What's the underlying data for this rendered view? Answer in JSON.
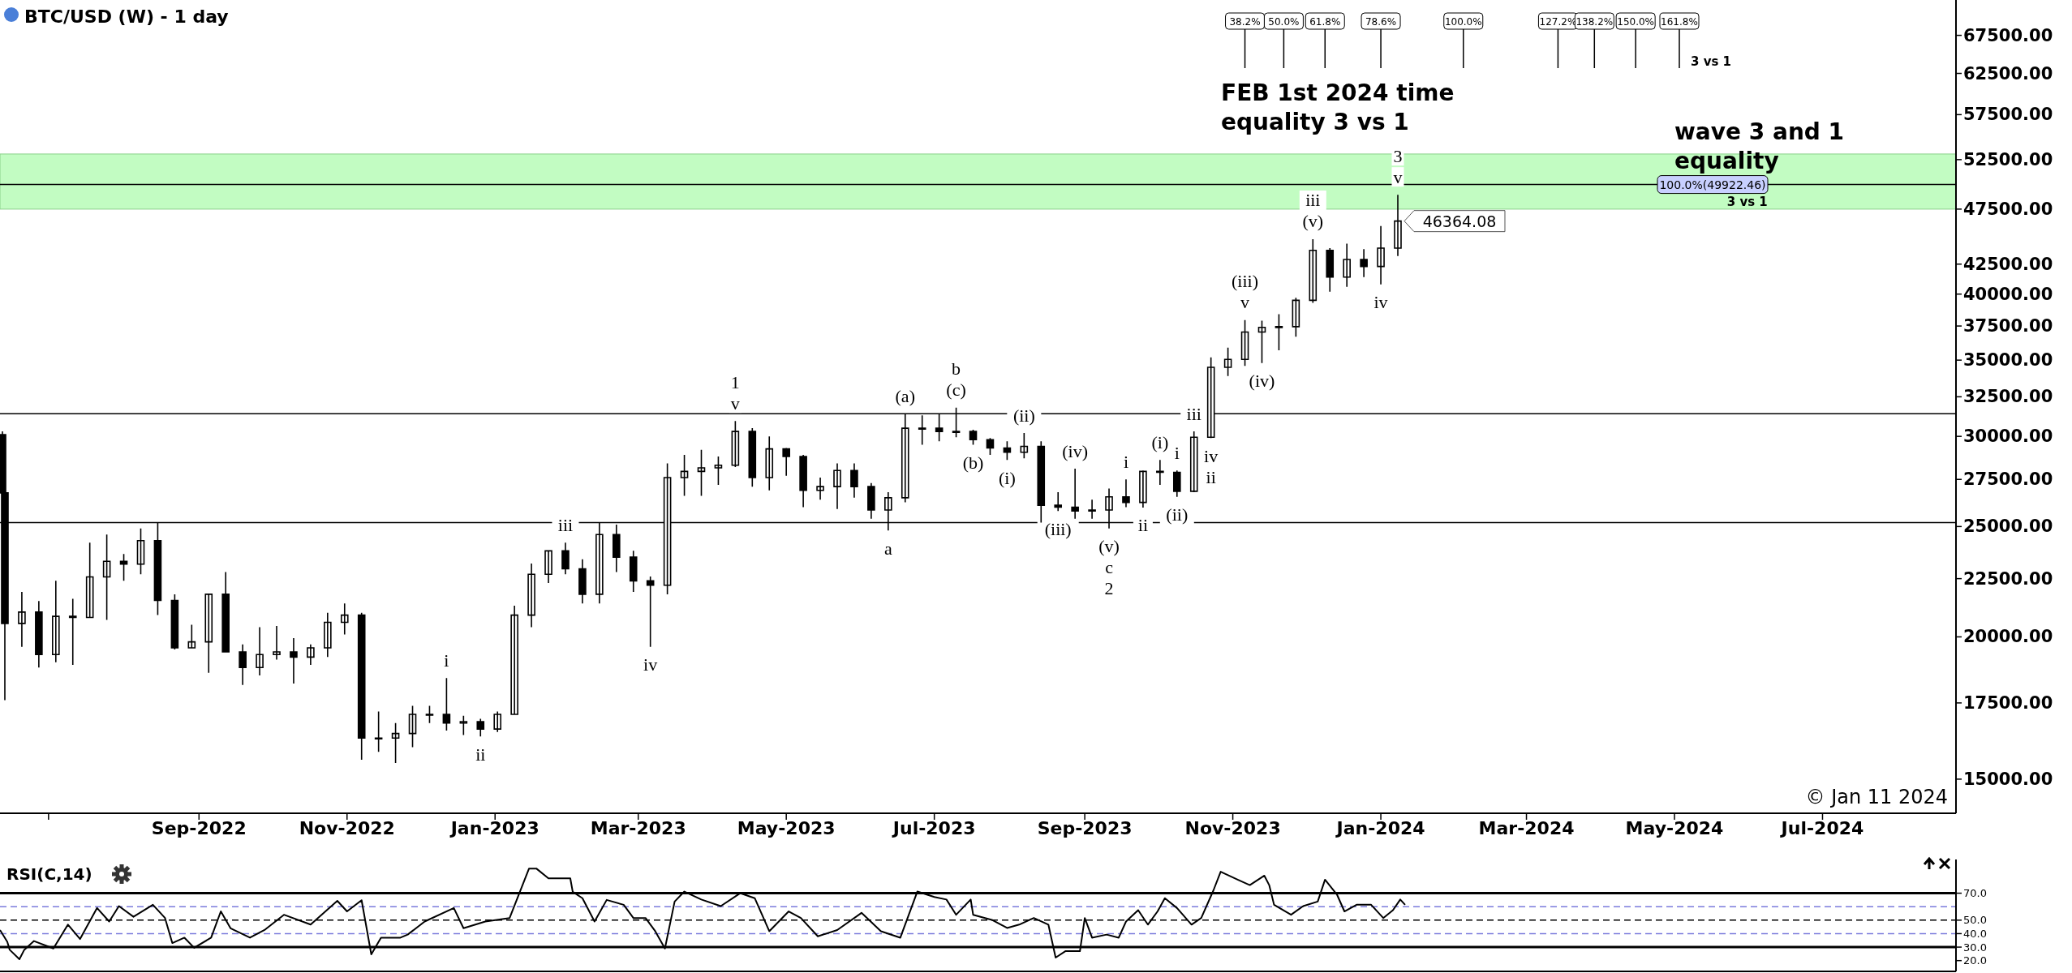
{
  "chart_data": [
    {
      "type": "candlestick",
      "title": "BTC/USD (W) - 1 day",
      "color": "#000000",
      "log": true,
      "x": [
        "2022-06-12",
        "2022-06-13",
        "2022-06-20",
        "2022-06-27",
        "2022-07-04",
        "2022-07-11",
        "2022-07-18",
        "2022-07-25",
        "2022-08-01",
        "2022-08-08",
        "2022-08-15",
        "2022-08-22",
        "2022-08-29",
        "2022-09-05",
        "2022-09-12",
        "2022-09-19",
        "2022-09-26",
        "2022-10-03",
        "2022-10-10",
        "2022-10-17",
        "2022-10-24",
        "2022-10-31",
        "2022-11-07",
        "2022-11-14",
        "2022-11-21",
        "2022-11-28",
        "2022-12-05",
        "2022-12-12",
        "2022-12-19",
        "2022-12-26",
        "2023-01-02",
        "2023-01-09",
        "2023-01-16",
        "2023-01-23",
        "2023-01-30",
        "2023-02-06",
        "2023-02-13",
        "2023-02-20",
        "2023-02-27",
        "2023-03-06",
        "2023-03-13",
        "2023-03-20",
        "2023-03-27",
        "2023-04-03",
        "2023-04-10",
        "2023-04-17",
        "2023-04-24",
        "2023-05-01",
        "2023-05-08",
        "2023-05-15",
        "2023-05-22",
        "2023-05-29",
        "2023-06-05",
        "2023-06-12",
        "2023-06-19",
        "2023-06-26",
        "2023-07-03",
        "2023-07-10",
        "2023-07-17",
        "2023-07-24",
        "2023-07-31",
        "2023-08-07",
        "2023-08-14",
        "2023-08-21",
        "2023-08-28",
        "2023-09-04",
        "2023-09-11",
        "2023-09-18",
        "2023-09-25",
        "2023-10-02",
        "2023-10-09",
        "2023-10-16",
        "2023-10-23",
        "2023-10-30",
        "2023-11-06",
        "2023-11-13",
        "2023-11-20",
        "2023-11-27",
        "2023-12-04",
        "2023-12-11",
        "2023-12-18",
        "2023-12-25",
        "2024-01-01",
        "2024-01-08"
      ],
      "ohlc": [
        [
          30100,
          30300,
          26600,
          26760
        ],
        [
          26760,
          26800,
          17600,
          20550
        ],
        [
          20550,
          21900,
          19600,
          21030
        ],
        [
          21030,
          21500,
          18800,
          19300
        ],
        [
          19300,
          22400,
          19000,
          20850
        ],
        [
          20850,
          21600,
          18900,
          20800
        ],
        [
          20800,
          24200,
          20800,
          22580
        ],
        [
          22580,
          24600,
          20700,
          23300
        ],
        [
          23300,
          23650,
          22400,
          23170
        ],
        [
          23170,
          24900,
          22700,
          24300
        ],
        [
          24300,
          25200,
          20900,
          21530
        ],
        [
          21530,
          21800,
          19500,
          19560
        ],
        [
          19560,
          20500,
          19550,
          19800
        ],
        [
          19800,
          21800,
          18600,
          21800
        ],
        [
          21800,
          22800,
          19400,
          19400
        ],
        [
          19400,
          19700,
          18150,
          18800
        ],
        [
          18800,
          20400,
          18500,
          19300
        ],
        [
          19300,
          20450,
          19100,
          19400
        ],
        [
          19400,
          19950,
          18200,
          19200
        ],
        [
          19200,
          19700,
          18900,
          19560
        ],
        [
          19560,
          21000,
          19200,
          20600
        ],
        [
          20600,
          21400,
          20100,
          20900
        ],
        [
          20900,
          21000,
          15600,
          16300
        ],
        [
          16300,
          17200,
          15850,
          16300
        ],
        [
          16300,
          16800,
          15500,
          16450
        ],
        [
          16450,
          17400,
          16000,
          17100
        ],
        [
          17100,
          17400,
          16800,
          17100
        ],
        [
          17100,
          18400,
          16550,
          16800
        ],
        [
          16800,
          17050,
          16400,
          16850
        ],
        [
          16850,
          16950,
          16350,
          16600
        ],
        [
          16600,
          17200,
          16500,
          17100
        ],
        [
          17100,
          21300,
          17100,
          20900
        ],
        [
          20900,
          23200,
          20400,
          22700
        ],
        [
          22700,
          23800,
          22300,
          23800
        ],
        [
          23800,
          24200,
          22700,
          22950
        ],
        [
          22950,
          23400,
          21400,
          21800
        ],
        [
          21800,
          25200,
          21400,
          24600
        ],
        [
          24600,
          25100,
          22800,
          23500
        ],
        [
          23500,
          23800,
          21900,
          22400
        ],
        [
          22400,
          22600,
          19600,
          22200
        ],
        [
          22200,
          28400,
          21800,
          27600
        ],
        [
          27600,
          28900,
          26600,
          27950
        ],
        [
          27950,
          29200,
          26600,
          28150
        ],
        [
          28150,
          28800,
          27200,
          28300
        ],
        [
          28300,
          30950,
          28200,
          30300
        ],
        [
          30300,
          30500,
          27100,
          27600
        ],
        [
          27600,
          30000,
          26900,
          29250
        ],
        [
          29250,
          29300,
          27700,
          28800
        ],
        [
          28800,
          28900,
          26000,
          26900
        ],
        [
          26900,
          27600,
          26400,
          27100
        ],
        [
          27100,
          28400,
          25900,
          28000
        ],
        [
          28000,
          28400,
          26500,
          27100
        ],
        [
          27100,
          27300,
          25400,
          25850
        ],
        [
          25850,
          26800,
          24800,
          26500
        ],
        [
          26500,
          31400,
          26250,
          30500
        ],
        [
          30500,
          31300,
          29500,
          30500
        ],
        [
          30500,
          31400,
          29700,
          30300
        ],
        [
          30300,
          31800,
          29950,
          30300
        ],
        [
          30300,
          30400,
          29500,
          29800
        ],
        [
          29800,
          29900,
          28900,
          29300
        ],
        [
          29300,
          29700,
          28600,
          29050
        ],
        [
          29050,
          30200,
          28700,
          29400
        ],
        [
          29400,
          29700,
          25200,
          26100
        ],
        [
          26100,
          26800,
          25800,
          26000
        ],
        [
          26000,
          28100,
          25400,
          25800
        ],
        [
          25800,
          26400,
          25400,
          25850
        ],
        [
          25850,
          27000,
          24900,
          26550
        ],
        [
          26550,
          27500,
          26000,
          26250
        ],
        [
          26250,
          28000,
          25980,
          27950
        ],
        [
          27950,
          28600,
          27200,
          27900
        ],
        [
          27900,
          28000,
          26550,
          26850
        ],
        [
          26850,
          30300,
          26800,
          29950
        ],
        [
          29950,
          35200,
          29900,
          34500
        ],
        [
          34500,
          35900,
          33900,
          35050
        ],
        [
          35050,
          37950,
          34600,
          37050
        ],
        [
          37050,
          37900,
          34800,
          37400
        ],
        [
          37400,
          38400,
          35700,
          37450
        ],
        [
          37450,
          39700,
          36700,
          39500
        ],
        [
          39500,
          44700,
          39300,
          43700
        ],
        [
          43700,
          43900,
          40200,
          41400
        ],
        [
          41400,
          44300,
          40600,
          42900
        ],
        [
          42900,
          43800,
          41400,
          42300
        ],
        [
          42300,
          45900,
          40800,
          43900
        ],
        [
          43900,
          48900,
          43200,
          46364.08
        ]
      ],
      "xlim": [
        "2022-06-11",
        "2024-08-25"
      ],
      "xticks": [
        {
          "value": "2022-07-01",
          "label": null
        },
        {
          "value": "2022-09-01",
          "label": "Sep-2022"
        },
        {
          "value": "2022-11-01",
          "label": "Nov-2022"
        },
        {
          "value": "2023-01-01",
          "label": "Jan-2023"
        },
        {
          "value": "2023-03-01",
          "label": "Mar-2023"
        },
        {
          "value": "2023-05-01",
          "label": "May-2023"
        },
        {
          "value": "2023-07-01",
          "label": "Jul-2023"
        },
        {
          "value": "2023-09-01",
          "label": "Sep-2023"
        },
        {
          "value": "2023-11-01",
          "label": "Nov-2023"
        },
        {
          "value": "2024-01-01",
          "label": "Jan-2024"
        },
        {
          "value": "2024-03-01",
          "label": "Mar-2024"
        },
        {
          "value": "2024-05-01",
          "label": "May-2024"
        },
        {
          "value": "2024-07-01",
          "label": "Jul-2024"
        }
      ],
      "ylim": [
        14000,
        72500
      ],
      "yticks": [
        {
          "value": 15000,
          "label": "15000.00"
        },
        {
          "value": 17500,
          "label": "17500.00"
        },
        {
          "value": 20000,
          "label": "20000.00"
        },
        {
          "value": 22500,
          "label": "22500.00"
        },
        {
          "value": 25000,
          "label": "25000.00"
        },
        {
          "value": 27500,
          "label": "27500.00"
        },
        {
          "value": 30000,
          "label": "30000.00"
        },
        {
          "value": 32500,
          "label": "32500.00"
        },
        {
          "value": 35000,
          "label": "35000.00"
        },
        {
          "value": 37500,
          "label": "37500.00"
        },
        {
          "value": 40000,
          "label": "40000.00"
        },
        {
          "value": 42500,
          "label": "42500.00"
        },
        {
          "value": 47500,
          "label": "47500.00"
        },
        {
          "value": 52500,
          "label": "52500.00"
        },
        {
          "value": 57500,
          "label": "57500.00"
        },
        {
          "value": 62500,
          "label": "62500.00"
        },
        {
          "value": 67500,
          "label": "67500.00"
        }
      ],
      "bands": [
        {
          "axis": "y",
          "from": 47500,
          "to": 53100,
          "color": "#c2fcc2"
        }
      ],
      "ref_lines": [
        {
          "axis": "y",
          "value": 31400,
          "color": "#000000"
        },
        {
          "axis": "y",
          "value": 25200,
          "color": "#000000"
        },
        {
          "axis": "y",
          "value": 49922.46,
          "label": "100.0%(49922.46)",
          "color": "#000000"
        },
        {
          "axis": "x",
          "value": "2023-11-06",
          "label": "38.2%"
        },
        {
          "axis": "x",
          "value": "2023-11-22",
          "label": "50.0%"
        },
        {
          "axis": "x",
          "value": "2023-12-09",
          "label": "61.8%"
        },
        {
          "axis": "x",
          "value": "2024-01-01",
          "label": "78.6%"
        },
        {
          "axis": "x",
          "value": "2024-02-04",
          "label": "100.0%"
        },
        {
          "axis": "x",
          "value": "2024-03-14",
          "label": "127.2%"
        },
        {
          "axis": "x",
          "value": "2024-03-29",
          "label": "138.2%"
        },
        {
          "axis": "x",
          "value": "2024-04-15",
          "label": "150.0%"
        },
        {
          "axis": "x",
          "value": "2024-05-03",
          "label": "161.8%"
        }
      ],
      "annotations": [
        {
          "text": "i",
          "x": "2022-12-12",
          "y": 18400
        },
        {
          "text": "ii",
          "x": "2022-12-26",
          "y": 16350
        },
        {
          "text": "iii",
          "x": "2023-01-30",
          "y": 24200
        },
        {
          "text": "iv",
          "x": "2023-03-06",
          "y": 19600
        },
        {
          "text": "v",
          "x": "2023-04-10",
          "y": 30950
        },
        {
          "text": "1",
          "x": "2023-04-10",
          "y": 30950
        },
        {
          "text": "(a)",
          "x": "2023-06-19",
          "y": 31400
        },
        {
          "text": "(c)",
          "x": "2023-07-10",
          "y": 31800
        },
        {
          "text": "b",
          "x": "2023-07-10",
          "y": 31800
        },
        {
          "text": "(b)",
          "x": "2023-07-17",
          "y": 29500
        },
        {
          "text": "(ii)",
          "x": "2023-08-07",
          "y": 30200
        },
        {
          "text": "(i)",
          "x": "2023-07-31",
          "y": 28600
        },
        {
          "text": "a",
          "x": "2023-06-12",
          "y": 24800
        },
        {
          "text": "(iv)",
          "x": "2023-08-28",
          "y": 28100
        },
        {
          "text": "(iii)",
          "x": "2023-08-21",
          "y": 25800
        },
        {
          "text": "(v)",
          "x": "2023-09-11",
          "y": 24900
        },
        {
          "text": "c",
          "x": "2023-09-11",
          "y": 24900
        },
        {
          "text": "2",
          "x": "2023-09-11",
          "y": 24900
        },
        {
          "text": "i",
          "x": "2023-09-18",
          "y": 27500
        },
        {
          "text": "ii",
          "x": "2023-09-25",
          "y": 25980
        },
        {
          "text": "(i)",
          "x": "2023-10-02",
          "y": 28600
        },
        {
          "text": "(ii)",
          "x": "2023-10-09",
          "y": 26550
        },
        {
          "text": "i",
          "x": "2023-10-09",
          "y": 28000
        },
        {
          "text": "iv",
          "x": "2023-10-23",
          "y": 29900
        },
        {
          "text": "ii",
          "x": "2023-10-23",
          "y": 29900
        },
        {
          "text": "iii",
          "x": "2023-10-16",
          "y": 30300
        },
        {
          "text": "v",
          "x": "2023-11-06",
          "y": 37950
        },
        {
          "text": "(iii)",
          "x": "2023-11-06",
          "y": 37950
        },
        {
          "text": "(iv)",
          "x": "2023-11-13",
          "y": 34800
        },
        {
          "text": "(v)",
          "x": "2023-12-04",
          "y": 44700
        },
        {
          "text": "iii",
          "x": "2023-12-04",
          "y": 44700
        },
        {
          "text": "iv",
          "x": "2024-01-01",
          "y": 40800
        },
        {
          "text": "v",
          "x": "2024-01-08",
          "y": 48900
        },
        {
          "text": "3",
          "x": "2024-01-08",
          "y": 48900
        },
        "FEB 1st 2024 time\nequality 3 vs 1",
        {
          "text": "3 vs 1",
          "x": "2024-05-03"
        },
        {
          "text": "wave 3 and 1\nequality",
          "x": "2024-05-01",
          "y": 49922.46
        },
        {
          "text": "3 vs 1",
          "x": "2024-05-31",
          "y": 49922.46
        },
        {
          "text": "46364.08",
          "x": "2024-01-08",
          "y": 46364.08
        },
        "© Jan 11 2024"
      ]
    },
    {
      "type": "line",
      "title": "RSI(C,14)",
      "tick_labels": "y",
      "xlim": [
        "2022-06-11",
        "2024-08-25"
      ],
      "ylim": [
        12,
        95
      ],
      "yticks": [
        {
          "value": 70,
          "label": "70.0"
        },
        {
          "value": 50,
          "label": "50.0"
        },
        {
          "value": 40,
          "label": "40.0"
        },
        {
          "value": 30,
          "label": "30.0"
        },
        {
          "value": 20,
          "label": "20.0"
        }
      ],
      "ref_lines": [
        {
          "axis": "y",
          "value": 70,
          "color": "#000000",
          "line_style": "solid"
        },
        {
          "axis": "y",
          "value": 30,
          "color": "#000000",
          "line_style": "solid"
        },
        {
          "axis": "y",
          "value": 50,
          "color": "#000000",
          "line_style": "dashed"
        },
        {
          "axis": "y",
          "value": 60,
          "color": "#7b7bdc",
          "line_style": "dashed"
        },
        {
          "axis": "y",
          "value": 40,
          "color": "#7b7bdc",
          "line_style": "dashed"
        }
      ],
      "series": [
        {
          "color": "#000000",
          "x": [
            "2022-06-11",
            "2022-06-14",
            "2022-06-15",
            "2022-06-19",
            "2022-06-21",
            "2022-06-25",
            "2022-07-03",
            "2022-07-09",
            "2022-07-14",
            "2022-07-21",
            "2022-07-26",
            "2022-07-30",
            "2022-08-05",
            "2022-08-13",
            "2022-08-18",
            "2022-08-21",
            "2022-08-26",
            "2022-08-30",
            "2022-09-06",
            "2022-09-10",
            "2022-09-14",
            "2022-09-22",
            "2022-09-28",
            "2022-10-06",
            "2022-10-17",
            "2022-10-28",
            "2022-11-01",
            "2022-11-07",
            "2022-11-11",
            "2022-11-15",
            "2022-11-23",
            "2022-11-26",
            "2022-12-03",
            "2022-12-15",
            "2022-12-19",
            "2022-12-28",
            "2023-01-07",
            "2023-01-15",
            "2023-01-18",
            "2023-01-23",
            "2023-02-01",
            "2023-02-02",
            "2023-02-06",
            "2023-02-11",
            "2023-02-16",
            "2023-02-23",
            "2023-02-27",
            "2023-03-04",
            "2023-03-08",
            "2023-03-12",
            "2023-03-16",
            "2023-03-20",
            "2023-03-27",
            "2023-04-04",
            "2023-04-12",
            "2023-04-18",
            "2023-04-24",
            "2023-05-02",
            "2023-05-07",
            "2023-05-14",
            "2023-05-22",
            "2023-06-01",
            "2023-06-09",
            "2023-06-17",
            "2023-06-24",
            "2023-07-01",
            "2023-07-06",
            "2023-07-10",
            "2023-07-16",
            "2023-07-17",
            "2023-07-25",
            "2023-07-31",
            "2023-08-05",
            "2023-08-11",
            "2023-08-13",
            "2023-08-17",
            "2023-08-20",
            "2023-08-24",
            "2023-08-30",
            "2023-09-01",
            "2023-09-04",
            "2023-09-10",
            "2023-09-15",
            "2023-09-18",
            "2023-09-23",
            "2023-09-27",
            "2023-10-01",
            "2023-10-04",
            "2023-10-09",
            "2023-10-15",
            "2023-10-19",
            "2023-10-24",
            "2023-10-27",
            "2023-11-03",
            "2023-11-08",
            "2023-11-14",
            "2023-11-16",
            "2023-11-18",
            "2023-11-25",
            "2023-11-30",
            "2023-12-06",
            "2023-12-09",
            "2023-12-14",
            "2023-12-17",
            "2023-12-22",
            "2023-12-28",
            "2024-01-02",
            "2024-01-06",
            "2024-01-09",
            "2024-01-11"
          ],
          "values": [
            42.7,
            34,
            28,
            21,
            28,
            34.5,
            29,
            46.7,
            36,
            59,
            49,
            60.4,
            52.5,
            61.4,
            51.6,
            33,
            37,
            29.5,
            37,
            56.5,
            44,
            37,
            42.7,
            54,
            46.7,
            64.3,
            56.5,
            64.8,
            24.6,
            37,
            37,
            39.3,
            49,
            59,
            44,
            49,
            51.6,
            88.3,
            88.3,
            81,
            81,
            71,
            66.3,
            49,
            65,
            61.4,
            51.6,
            51.6,
            41.8,
            29,
            63.8,
            71.2,
            65.3,
            60.4,
            70,
            66.3,
            41.8,
            56.5,
            51.6,
            38,
            42.7,
            55.4,
            41.8,
            37,
            71.2,
            67.2,
            65.3,
            54,
            65.3,
            54,
            50,
            44.2,
            46.7,
            51.6,
            50,
            46.7,
            22.2,
            27,
            27,
            51.6,
            37,
            39.3,
            37,
            49,
            57.4,
            46.7,
            56.5,
            66.3,
            59,
            46.7,
            51.6,
            72,
            85.9,
            80,
            76,
            83,
            76,
            61.4,
            54,
            60.4,
            63.8,
            80,
            68.7,
            56.5,
            61.4,
            61.4,
            51.6,
            57.4,
            65.3,
            61.4
          ]
        }
      ]
    }
  ]
}
